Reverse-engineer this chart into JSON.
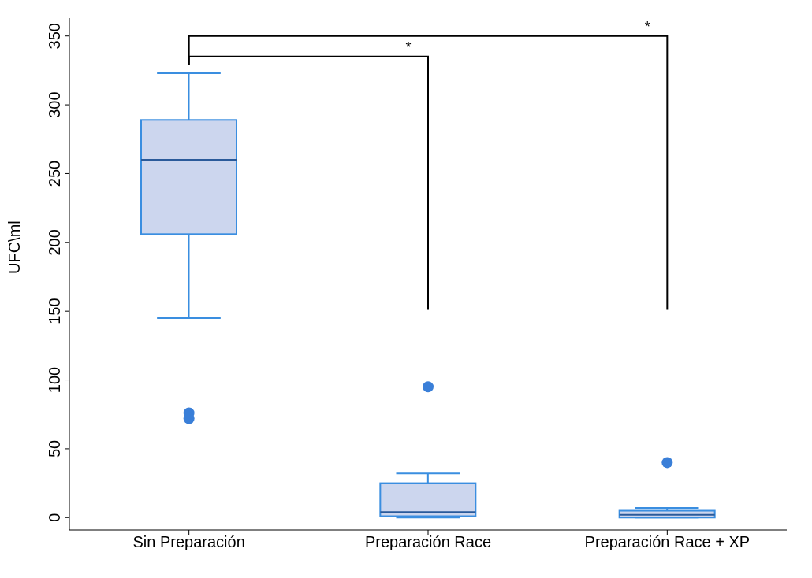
{
  "chart_data": {
    "type": "box",
    "ylabel": "UFC\\ml",
    "categories": [
      "Sin Preparación",
      "Preparación Race",
      "Preparación Race + XP"
    ],
    "boxes": [
      {
        "low": 145,
        "q1": 206,
        "median": 260,
        "q3": 289,
        "high": 323,
        "outliers": [
          76,
          72
        ]
      },
      {
        "low": 0,
        "q1": 1,
        "median": 4,
        "q3": 25,
        "high": 32,
        "outliers": [
          95
        ]
      },
      {
        "low": 0,
        "q1": 0,
        "median": 2,
        "q3": 5,
        "high": 7,
        "outliers": [
          40
        ]
      }
    ],
    "color": "#3a8ee0",
    "ylim": [
      -9,
      363
    ],
    "yticks": [
      0,
      50,
      100,
      150,
      200,
      250,
      300,
      350
    ],
    "annotations": [
      "*",
      "*"
    ]
  }
}
